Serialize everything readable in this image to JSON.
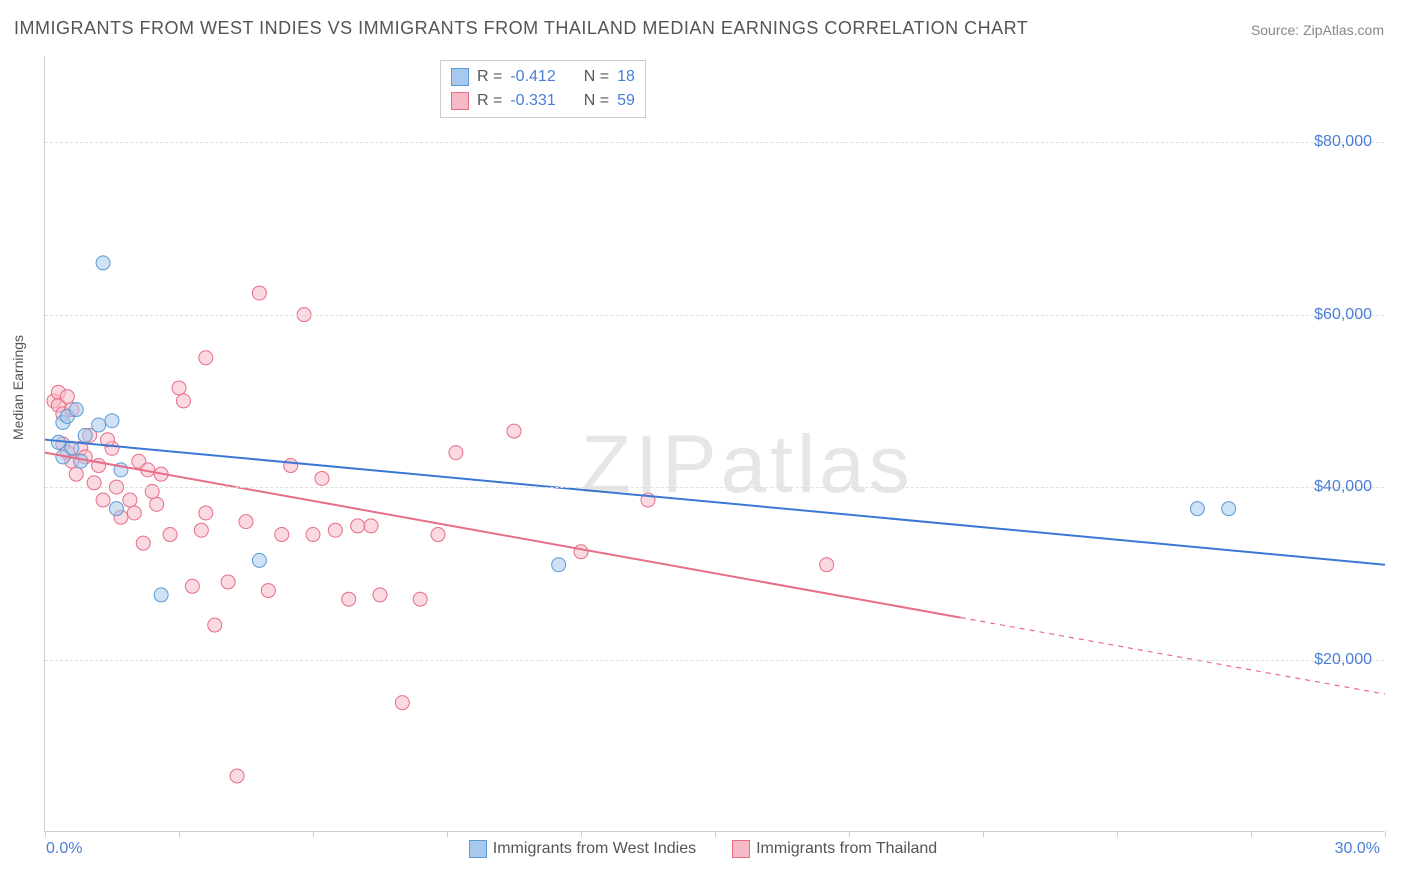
{
  "title": "IMMIGRANTS FROM WEST INDIES VS IMMIGRANTS FROM THAILAND MEDIAN EARNINGS CORRELATION CHART",
  "source": "Source: ZipAtlas.com",
  "ylabel": "Median Earnings",
  "watermark": "ZIPatlas",
  "chart": {
    "type": "scatter",
    "xlim": [
      0,
      30
    ],
    "ylim": [
      0,
      90000
    ],
    "x_tick_labels": {
      "min": "0.0%",
      "max": "30.0%"
    },
    "x_tick_positions_pct": [
      0,
      10,
      20,
      30,
      40,
      50,
      60,
      70,
      80,
      90,
      100
    ],
    "y_gridlines": [
      20000,
      40000,
      60000,
      80000
    ],
    "y_tick_format": "${v}",
    "grid_color": "#e0e0e0",
    "axis_color": "#cccccc",
    "background_color": "#ffffff",
    "marker_radius": 7,
    "marker_opacity": 0.55,
    "series": [
      {
        "name": "Immigrants from West Indies",
        "color_fill": "#a6c9ed",
        "color_stroke": "#5b9bd5",
        "line_color": "#3b78d6",
        "R": "-0.412",
        "N": "18",
        "trend": {
          "x1": 0,
          "y1": 45500,
          "x2": 30,
          "y2": 31000,
          "solid_until_x": 30,
          "line_width": 2
        },
        "points": [
          [
            0.3,
            45200
          ],
          [
            0.4,
            47500
          ],
          [
            0.5,
            48200
          ],
          [
            0.6,
            44500
          ],
          [
            0.7,
            49000
          ],
          [
            0.9,
            46000
          ],
          [
            1.2,
            47200
          ],
          [
            1.5,
            47700
          ],
          [
            1.7,
            42000
          ],
          [
            1.3,
            66000
          ],
          [
            1.6,
            37500
          ],
          [
            2.6,
            27500
          ],
          [
            4.8,
            31500
          ],
          [
            11.5,
            31000
          ],
          [
            25.8,
            37500
          ],
          [
            26.5,
            37500
          ],
          [
            0.8,
            43000
          ],
          [
            0.4,
            43500
          ]
        ]
      },
      {
        "name": "Immigrants from Thailand",
        "color_fill": "#f6b9c6",
        "color_stroke": "#e86d87",
        "line_color": "#e86d87",
        "R": "-0.331",
        "N": "59",
        "trend": {
          "x1": 0,
          "y1": 44000,
          "x2": 30,
          "y2": 16000,
          "solid_until_x": 20.5,
          "line_width": 2
        },
        "points": [
          [
            0.2,
            50000
          ],
          [
            0.3,
            49500
          ],
          [
            0.4,
            48500
          ],
          [
            0.4,
            45000
          ],
          [
            0.5,
            44000
          ],
          [
            0.6,
            43000
          ],
          [
            0.7,
            41500
          ],
          [
            0.8,
            44500
          ],
          [
            0.9,
            43500
          ],
          [
            1.0,
            46000
          ],
          [
            1.1,
            40500
          ],
          [
            1.2,
            42500
          ],
          [
            1.3,
            38500
          ],
          [
            1.5,
            44500
          ],
          [
            1.6,
            40000
          ],
          [
            1.7,
            36500
          ],
          [
            1.9,
            38500
          ],
          [
            2.0,
            37000
          ],
          [
            2.1,
            43000
          ],
          [
            2.2,
            33500
          ],
          [
            2.3,
            42000
          ],
          [
            2.5,
            38000
          ],
          [
            2.6,
            41500
          ],
          [
            2.8,
            34500
          ],
          [
            3.0,
            51500
          ],
          [
            3.1,
            50000
          ],
          [
            3.3,
            28500
          ],
          [
            3.5,
            35000
          ],
          [
            3.6,
            37000
          ],
          [
            3.6,
            55000
          ],
          [
            3.8,
            24000
          ],
          [
            4.1,
            29000
          ],
          [
            4.3,
            6500
          ],
          [
            4.5,
            36000
          ],
          [
            4.8,
            62500
          ],
          [
            5.0,
            28000
          ],
          [
            5.3,
            34500
          ],
          [
            5.5,
            42500
          ],
          [
            5.8,
            60000
          ],
          [
            6.0,
            34500
          ],
          [
            6.2,
            41000
          ],
          [
            6.5,
            35000
          ],
          [
            6.8,
            27000
          ],
          [
            7.0,
            35500
          ],
          [
            7.3,
            35500
          ],
          [
            7.5,
            27500
          ],
          [
            8.0,
            15000
          ],
          [
            8.4,
            27000
          ],
          [
            8.8,
            34500
          ],
          [
            9.2,
            44000
          ],
          [
            10.5,
            46500
          ],
          [
            12.0,
            32500
          ],
          [
            13.5,
            38500
          ],
          [
            17.5,
            31000
          ],
          [
            0.3,
            51000
          ],
          [
            0.5,
            50500
          ],
          [
            0.6,
            49000
          ],
          [
            1.4,
            45500
          ],
          [
            2.4,
            39500
          ]
        ]
      }
    ]
  },
  "legend_bottom": [
    {
      "label": "Immigrants from West Indies",
      "fill": "#a6c9ed",
      "stroke": "#5b9bd5"
    },
    {
      "label": "Immigrants from Thailand",
      "fill": "#f6b9c6",
      "stroke": "#e86d87"
    }
  ]
}
